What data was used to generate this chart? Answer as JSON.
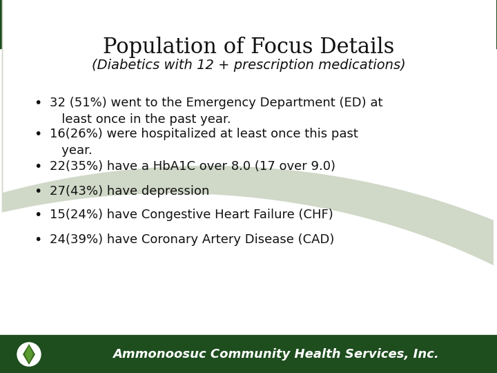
{
  "title": "Population of Focus Details",
  "subtitle": "(Diabetics with 12 + prescription medications)",
  "bullet_points": [
    "32 (51%) went to the Emergency Department (ED) at\n   least once in the past year.",
    "16(26%) were hospitalized at least once this past\n   year.",
    "22(35%) have a HbA1C over 8.0 (17 over 9.0)",
    "27(43%) have depression",
    "15(24%) have Congestive Heart Failure (CHF)",
    "24(39%) have Coronary Artery Disease (CAD)"
  ],
  "bg_color": "#ffffff",
  "top_bar_color": "#1e4d1e",
  "text_color": "#111111",
  "title_fontsize": 22,
  "subtitle_fontsize": 14,
  "bullet_fontsize": 13,
  "footer_text": "Ammonoosuc Community Health Services, Inc.",
  "footer_color": "#ffffff",
  "footer_bg_color": "#1e4d1e"
}
